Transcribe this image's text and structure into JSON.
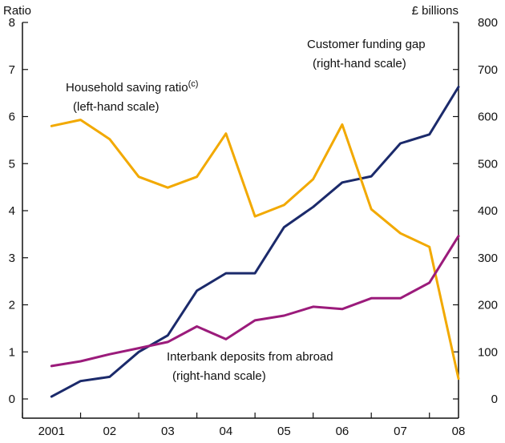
{
  "chart_data": {
    "type": "line",
    "title": "",
    "left_axis": {
      "label": "Ratio",
      "ylim": [
        0,
        8
      ],
      "ticks": [
        0,
        1,
        2,
        3,
        4,
        5,
        6,
        7,
        8
      ]
    },
    "right_axis": {
      "label": "£ billions",
      "ylim": [
        0,
        800
      ],
      "ticks": [
        0,
        100,
        200,
        300,
        400,
        500,
        600,
        700,
        800
      ]
    },
    "x_axis": {
      "range": [
        2001,
        2008.5
      ],
      "tick_labels": [
        {
          "label": "2001",
          "x": 2001.5
        },
        {
          "label": "02",
          "x": 2002.5
        },
        {
          "label": "03",
          "x": 2003.5
        },
        {
          "label": "04",
          "x": 2004.5
        },
        {
          "label": "05",
          "x": 2005.5
        },
        {
          "label": "06",
          "x": 2006.5
        },
        {
          "label": "07",
          "x": 2007.5
        },
        {
          "label": "08",
          "x": 2008.5
        }
      ]
    },
    "series": [
      {
        "name": "Customer funding gap",
        "axis": "right",
        "color": "#1b2a6b",
        "x": [
          2001.5,
          2002.0,
          2002.5,
          2003.0,
          2003.5,
          2004.0,
          2004.5,
          2005.0,
          2005.5,
          2006.0,
          2006.5,
          2007.0,
          2007.5,
          2008.0,
          2008.5
        ],
        "values": [
          5,
          38,
          47,
          100,
          135,
          230,
          267,
          267,
          365,
          408,
          460,
          473,
          543,
          562,
          663
        ]
      },
      {
        "name": "Household saving ratio",
        "axis": "left",
        "color": "#f2a900",
        "x": [
          2001.5,
          2002.0,
          2002.5,
          2003.0,
          2003.5,
          2004.0,
          2004.5,
          2005.0,
          2005.5,
          2006.0,
          2006.5,
          2007.0,
          2007.5,
          2008.0,
          2008.5
        ],
        "values": [
          5.8,
          5.93,
          5.52,
          4.72,
          4.49,
          4.72,
          5.64,
          3.88,
          4.12,
          4.67,
          5.83,
          4.03,
          3.52,
          3.23,
          0.43
        ]
      },
      {
        "name": "Interbank deposits from abroad",
        "axis": "right",
        "color": "#9b1b7b",
        "x": [
          2001.5,
          2002.0,
          2002.5,
          2003.0,
          2003.5,
          2004.0,
          2004.5,
          2005.0,
          2005.5,
          2006.0,
          2006.5,
          2007.0,
          2007.5,
          2008.0,
          2008.5
        ],
        "values": [
          70,
          80,
          95,
          108,
          121,
          154,
          127,
          167,
          177,
          196,
          191,
          214,
          214,
          247,
          346
        ]
      }
    ],
    "annotations": [
      {
        "text": "Customer funding gap",
        "series": "Customer funding gap"
      },
      {
        "text": "(right-hand scale)",
        "series": "Customer funding gap"
      },
      {
        "text": "Household saving ratio",
        "superscript": "(c)",
        "series": "Household saving ratio"
      },
      {
        "text": "(left-hand scale)",
        "series": "Household saving ratio"
      },
      {
        "text": "Interbank deposits from abroad",
        "series": "Interbank deposits from abroad"
      },
      {
        "text": "(right-hand scale)",
        "series": "Interbank deposits from abroad"
      }
    ]
  }
}
